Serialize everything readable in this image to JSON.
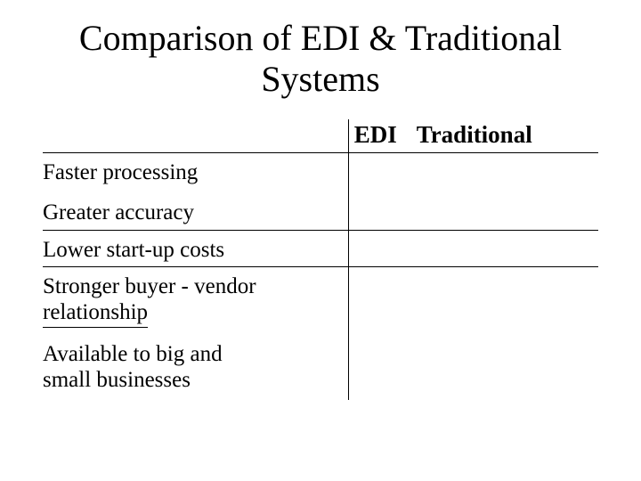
{
  "title": "Comparison of EDI & Traditional Systems",
  "table": {
    "columns": [
      "EDI",
      "Traditional"
    ],
    "column_widths_pct": [
      55,
      45
    ],
    "header_fontsize": 27,
    "header_fontweight": 700,
    "body_fontsize": 25,
    "border_color": "#000000",
    "background_color": "#ffffff",
    "text_color": "#000000",
    "rows": [
      {
        "label": "Faster processing",
        "bottom_border": false
      },
      {
        "label": "Greater accuracy",
        "bottom_border": true
      },
      {
        "label": "Lower start-up costs",
        "bottom_border": true
      },
      {
        "label_line1": "Stronger buyer - vendor",
        "label_line2_underlined": "relationship",
        "bottom_border": false,
        "two_line_partial_underline": true
      },
      {
        "label_line1": "Available to big and",
        "label_line2": "small businesses",
        "bottom_border": false,
        "two_line": true
      }
    ]
  }
}
